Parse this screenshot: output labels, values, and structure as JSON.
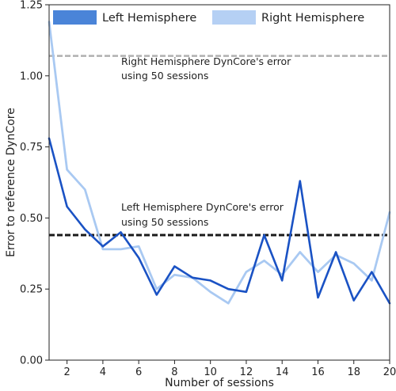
{
  "chart_data": {
    "type": "line",
    "xlabel": "Number of sessions",
    "ylabel": "Error to reference DynCore",
    "xlim": [
      1,
      20
    ],
    "ylim": [
      0,
      1.25
    ],
    "x_ticks": [
      2,
      4,
      6,
      8,
      10,
      12,
      14,
      16,
      18,
      20
    ],
    "y_ticks": [
      0.0,
      0.25,
      0.5,
      0.75,
      1.0,
      1.25
    ],
    "y_tick_labels": [
      "0.00",
      "0.25",
      "0.50",
      "0.75",
      "1.00",
      "1.25"
    ],
    "grid": false,
    "legend_placement": "top",
    "x": [
      1,
      2,
      3,
      4,
      5,
      6,
      7,
      8,
      9,
      10,
      11,
      12,
      13,
      14,
      15,
      16,
      17,
      18,
      19,
      20
    ],
    "series": [
      {
        "name": "Left Hemisphere",
        "color": "#1a52c4",
        "legend_color": "#4a84d8",
        "values": [
          0.78,
          0.54,
          0.46,
          0.4,
          0.45,
          0.36,
          0.23,
          0.33,
          0.29,
          0.28,
          0.25,
          0.24,
          0.44,
          0.28,
          0.63,
          0.22,
          0.38,
          0.21,
          0.31,
          0.2
        ]
      },
      {
        "name": "Right Hemisphere",
        "color": "#a9c9f2",
        "legend_color": "#b5d0f4",
        "values": [
          1.19,
          0.67,
          0.6,
          0.39,
          0.39,
          0.4,
          0.25,
          0.3,
          0.29,
          0.24,
          0.2,
          0.31,
          0.35,
          0.3,
          0.38,
          0.31,
          0.37,
          0.34,
          0.28,
          0.52
        ]
      }
    ],
    "reference_lines": [
      {
        "name": "right-hemisphere-reference",
        "y": 1.07,
        "color": "#b0b0b0",
        "label_lines": [
          "Right Hemisphere DynCore's error",
          "using 50 sessions"
        ]
      },
      {
        "name": "left-hemisphere-reference",
        "y": 0.44,
        "color": "#1a1a1a",
        "label_lines": [
          "Left Hemisphere DynCore's error",
          "using 50 sessions"
        ]
      }
    ]
  }
}
